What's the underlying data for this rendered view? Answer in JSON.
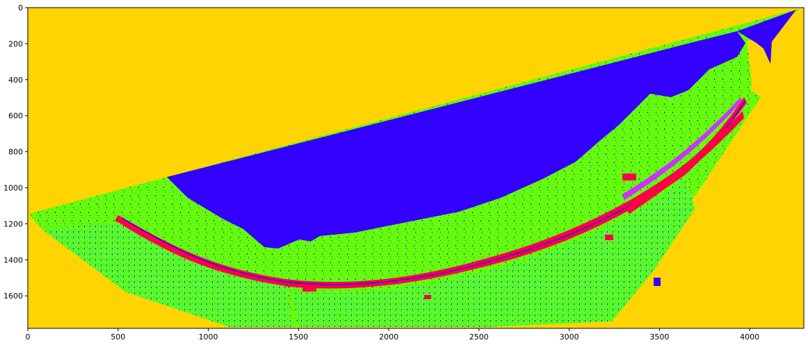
{
  "image": {
    "kind": "classified land-cover raster (false-color class map)",
    "colormap": {
      "background": "#FFD400",
      "water": "#3300FF",
      "vegetation": "#66FF00",
      "urban": "#00DDFF",
      "levee": "#FF0044",
      "mixed": "#CC33FF"
    }
  },
  "axes": {
    "x_ticks": [
      "0",
      "500",
      "1000",
      "1500",
      "2000",
      "2500",
      "3000",
      "3500",
      "4000"
    ],
    "y_ticks": [
      "0",
      "200",
      "400",
      "600",
      "800",
      "1000",
      "1200",
      "1400",
      "1600"
    ],
    "xlim": [
      0,
      4300
    ],
    "ylim": [
      1780,
      0
    ]
  }
}
